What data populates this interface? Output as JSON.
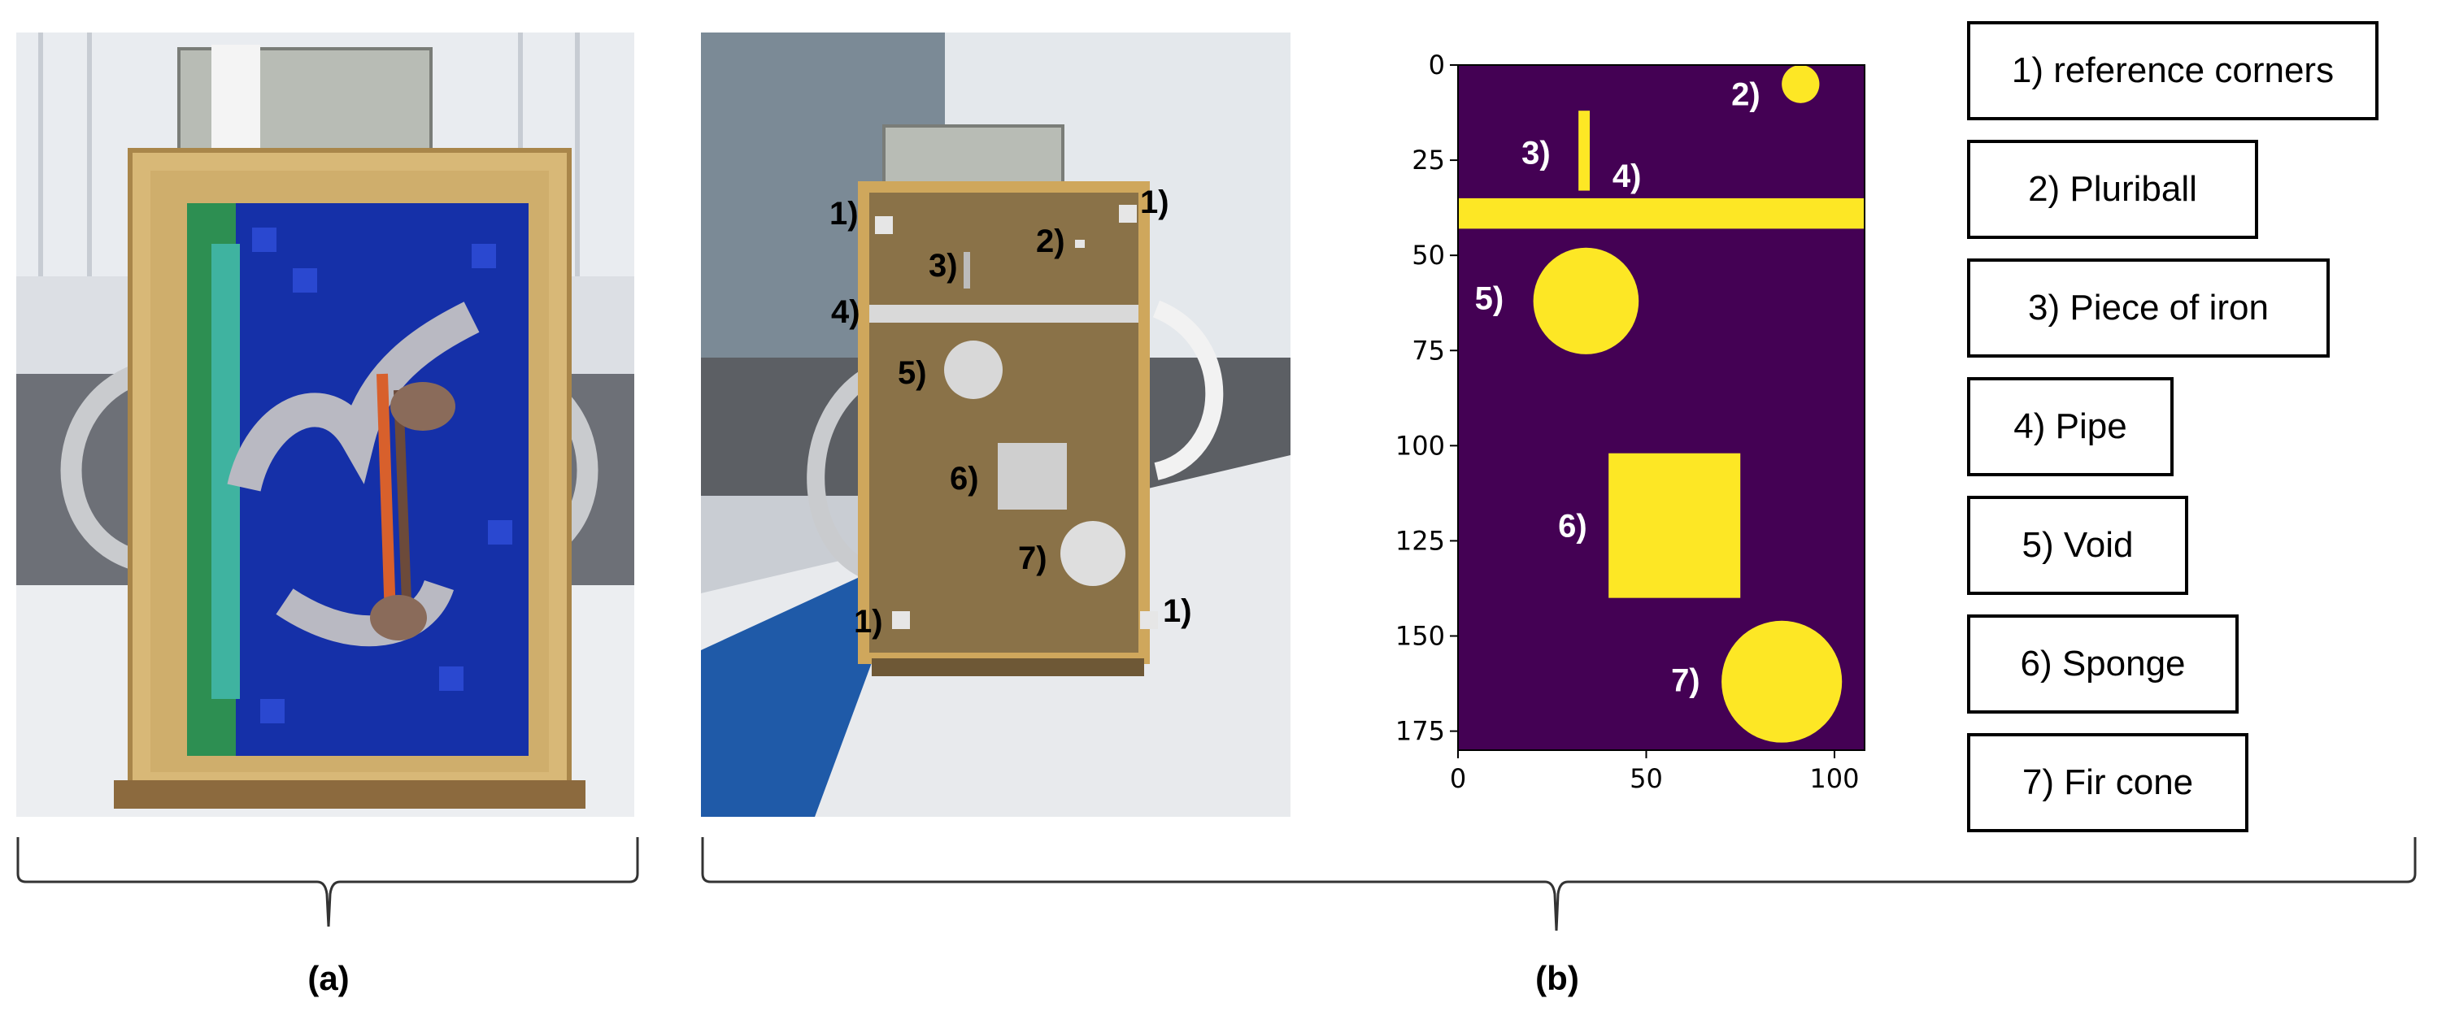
{
  "panels": {
    "a": {
      "caption": "(a)"
    },
    "b": {
      "caption": "(b)"
    }
  },
  "photo_b_labels": [
    "1)",
    "1)",
    "2)",
    "3)",
    "4)",
    "5)",
    "6)",
    "7)",
    "1)",
    "1)"
  ],
  "legend": [
    "1) reference corners",
    "2) Pluriball",
    "3) Piece of iron",
    "4) Pipe",
    "5) Void",
    "6) Sponge",
    "7) Fir cone"
  ],
  "colors": {
    "plot_background": "#440154",
    "plot_objects": "#fde725",
    "mosaic_blue": "#1530a8"
  },
  "chart_data": {
    "type": "heatmap",
    "title": "",
    "xlabel": "",
    "ylabel": "",
    "xlim": [
      0,
      108
    ],
    "ylim": [
      180,
      0
    ],
    "xticks": [
      0,
      50,
      100
    ],
    "yticks": [
      0,
      25,
      50,
      75,
      100,
      125,
      150,
      175
    ],
    "grid": false,
    "objects": [
      {
        "label": "2)",
        "shape": "circle",
        "cx": 91,
        "cy": 5,
        "r": 5
      },
      {
        "label": "3)",
        "shape": "rect",
        "x0": 32,
        "x1": 35,
        "y0": 12,
        "y1": 33
      },
      {
        "label": "4)",
        "shape": "rect",
        "x0": 0,
        "x1": 108,
        "y0": 35,
        "y1": 43
      },
      {
        "label": "5)",
        "shape": "circle",
        "cx": 34,
        "cy": 62,
        "r": 14
      },
      {
        "label": "6)",
        "shape": "rect",
        "x0": 40,
        "x1": 75,
        "y0": 102,
        "y1": 140
      },
      {
        "label": "7)",
        "shape": "circle",
        "cx": 86,
        "cy": 162,
        "r": 16
      }
    ]
  }
}
